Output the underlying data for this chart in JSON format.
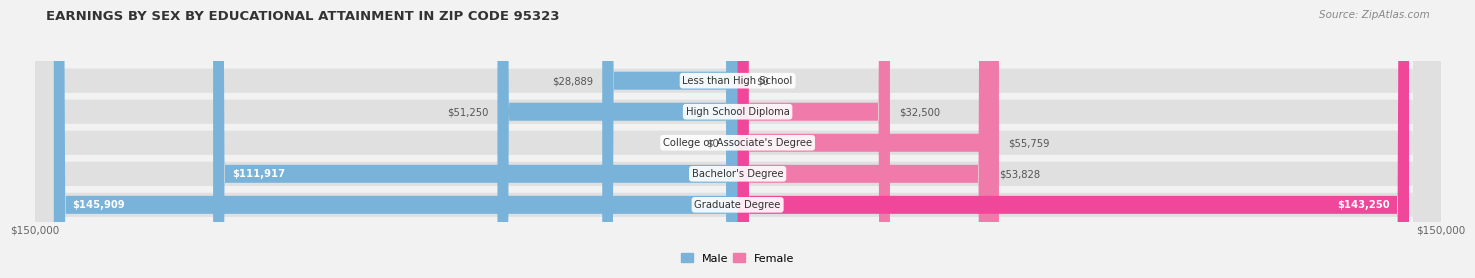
{
  "title": "EARNINGS BY SEX BY EDUCATIONAL ATTAINMENT IN ZIP CODE 95323",
  "source": "Source: ZipAtlas.com",
  "categories": [
    "Less than High School",
    "High School Diploma",
    "College or Associate's Degree",
    "Bachelor's Degree",
    "Graduate Degree"
  ],
  "male_values": [
    28889,
    51250,
    0,
    111917,
    145909
  ],
  "female_values": [
    0,
    32500,
    55759,
    53828,
    143250
  ],
  "male_color": "#7ab3d9",
  "female_color": "#f07aaa",
  "female_color_large": "#f0479a",
  "max_value": 150000,
  "x_tick_left": "$150,000",
  "x_tick_right": "$150,000",
  "background_color": "#f2f2f2",
  "row_bg_color": "#e0e0e0",
  "title_fontsize": 9.5,
  "label_fontsize": 7.5,
  "bar_height": 0.58
}
